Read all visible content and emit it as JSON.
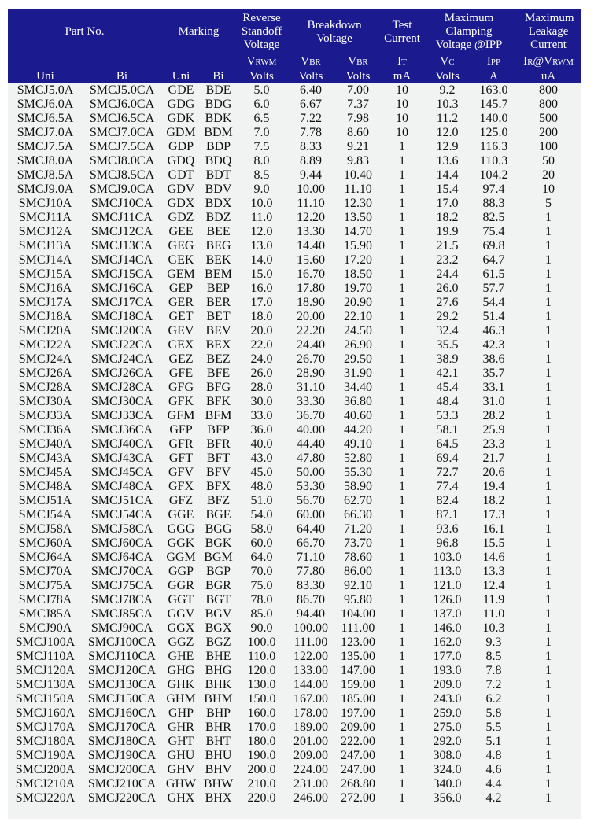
{
  "header": {
    "part_no": "Part No.",
    "marking": "Marking",
    "reverse_standoff": "Reverse Standoff Voltage",
    "breakdown": "Breakdown Voltage",
    "test_current": "Test Current",
    "max_clamping": "Maximum Clamping Voltage @IPP",
    "max_leakage": "Maximum Leakage Current",
    "symbols": {
      "vrwm": {
        "main": "V",
        "sub": "RWM"
      },
      "vbr_min": {
        "main": "V",
        "sub": "BR"
      },
      "vbr_max": {
        "main": "V",
        "sub": "BR"
      },
      "it": {
        "main": "I",
        "sub": "T"
      },
      "vc": {
        "main": "V",
        "sub": "C"
      },
      "ipp": {
        "main": "I",
        "sub": "PP"
      },
      "ir": {
        "main": "I",
        "sub": "R",
        "mid": "@V",
        "sub2": "RWM"
      }
    },
    "units": [
      "Uni",
      "Bi",
      "Uni",
      "Bi",
      "Volts",
      "Volts",
      "Volts",
      "mA",
      "Volts",
      "A",
      "uA"
    ]
  },
  "colors": {
    "header_bg": "#1b1b8f",
    "header_text": "#ffffff",
    "body_bg": "#f1f2f2"
  },
  "rows": [
    [
      "SMCJ5.0A",
      "SMCJ5.0CA",
      "GDE",
      "BDE",
      "5.0",
      "6.40",
      "7.00",
      "10",
      "9.2",
      "163.0",
      "800"
    ],
    [
      "SMCJ6.0A",
      "SMCJ6.0CA",
      "GDG",
      "BDG",
      "6.0",
      "6.67",
      "7.37",
      "10",
      "10.3",
      "145.7",
      "800"
    ],
    [
      "SMCJ6.5A",
      "SMCJ6.5CA",
      "GDK",
      "BDK",
      "6.5",
      "7.22",
      "7.98",
      "10",
      "11.2",
      "140.0",
      "500"
    ],
    [
      "SMCJ7.0A",
      "SMCJ7.0CA",
      "GDM",
      "BDM",
      "7.0",
      "7.78",
      "8.60",
      "10",
      "12.0",
      "125.0",
      "200"
    ],
    [
      "SMCJ7.5A",
      "SMCJ7.5CA",
      "GDP",
      "BDP",
      "7.5",
      "8.33",
      "9.21",
      "1",
      "12.9",
      "116.3",
      "100"
    ],
    [
      "SMCJ8.0A",
      "SMCJ8.0CA",
      "GDQ",
      "BDQ",
      "8.0",
      "8.89",
      "9.83",
      "1",
      "13.6",
      "110.3",
      "50"
    ],
    [
      "SMCJ8.5A",
      "SMCJ8.5CA",
      "GDT",
      "BDT",
      "8.5",
      "9.44",
      "10.40",
      "1",
      "14.4",
      "104.2",
      "20"
    ],
    [
      "SMCJ9.0A",
      "SMCJ9.0CA",
      "GDV",
      "BDV",
      "9.0",
      "10.00",
      "11.10",
      "1",
      "15.4",
      "97.4",
      "10"
    ],
    [
      "SMCJ10A",
      "SMCJ10CA",
      "GDX",
      "BDX",
      "10.0",
      "11.10",
      "12.30",
      "1",
      "17.0",
      "88.3",
      "5"
    ],
    [
      "SMCJ11A",
      "SMCJ11CA",
      "GDZ",
      "BDZ",
      "11.0",
      "12.20",
      "13.50",
      "1",
      "18.2",
      "82.5",
      "1"
    ],
    [
      "SMCJ12A",
      "SMCJ12CA",
      "GEE",
      "BEE",
      "12.0",
      "13.30",
      "14.70",
      "1",
      "19.9",
      "75.4",
      "1"
    ],
    [
      "SMCJ13A",
      "SMCJ13CA",
      "GEG",
      "BEG",
      "13.0",
      "14.40",
      "15.90",
      "1",
      "21.5",
      "69.8",
      "1"
    ],
    [
      "SMCJ14A",
      "SMCJ14CA",
      "GEK",
      "BEK",
      "14.0",
      "15.60",
      "17.20",
      "1",
      "23.2",
      "64.7",
      "1"
    ],
    [
      "SMCJ15A",
      "SMCJ15CA",
      "GEM",
      "BEM",
      "15.0",
      "16.70",
      "18.50",
      "1",
      "24.4",
      "61.5",
      "1"
    ],
    [
      "SMCJ16A",
      "SMCJ16CA",
      "GEP",
      "BEP",
      "16.0",
      "17.80",
      "19.70",
      "1",
      "26.0",
      "57.7",
      "1"
    ],
    [
      "SMCJ17A",
      "SMCJ17CA",
      "GER",
      "BER",
      "17.0",
      "18.90",
      "20.90",
      "1",
      "27.6",
      "54.4",
      "1"
    ],
    [
      "SMCJ18A",
      "SMCJ18CA",
      "GET",
      "BET",
      "18.0",
      "20.00",
      "22.10",
      "1",
      "29.2",
      "51.4",
      "1"
    ],
    [
      "SMCJ20A",
      "SMCJ20CA",
      "GEV",
      "BEV",
      "20.0",
      "22.20",
      "24.50",
      "1",
      "32.4",
      "46.3",
      "1"
    ],
    [
      "SMCJ22A",
      "SMCJ22CA",
      "GEX",
      "BEX",
      "22.0",
      "24.40",
      "26.90",
      "1",
      "35.5",
      "42.3",
      "1"
    ],
    [
      "SMCJ24A",
      "SMCJ24CA",
      "GEZ",
      "BEZ",
      "24.0",
      "26.70",
      "29.50",
      "1",
      "38.9",
      "38.6",
      "1"
    ],
    [
      "SMCJ26A",
      "SMCJ26CA",
      "GFE",
      "BFE",
      "26.0",
      "28.90",
      "31.90",
      "1",
      "42.1",
      "35.7",
      "1"
    ],
    [
      "SMCJ28A",
      "SMCJ28CA",
      "GFG",
      "BFG",
      "28.0",
      "31.10",
      "34.40",
      "1",
      "45.4",
      "33.1",
      "1"
    ],
    [
      "SMCJ30A",
      "SMCJ30CA",
      "GFK",
      "BFK",
      "30.0",
      "33.30",
      "36.80",
      "1",
      "48.4",
      "31.0",
      "1"
    ],
    [
      "SMCJ33A",
      "SMCJ33CA",
      "GFM",
      "BFM",
      "33.0",
      "36.70",
      "40.60",
      "1",
      "53.3",
      "28.2",
      "1"
    ],
    [
      "SMCJ36A",
      "SMCJ36CA",
      "GFP",
      "BFP",
      "36.0",
      "40.00",
      "44.20",
      "1",
      "58.1",
      "25.9",
      "1"
    ],
    [
      "SMCJ40A",
      "SMCJ40CA",
      "GFR",
      "BFR",
      "40.0",
      "44.40",
      "49.10",
      "1",
      "64.5",
      "23.3",
      "1"
    ],
    [
      "SMCJ43A",
      "SMCJ43CA",
      "GFT",
      "BFT",
      "43.0",
      "47.80",
      "52.80",
      "1",
      "69.4",
      "21.7",
      "1"
    ],
    [
      "SMCJ45A",
      "SMCJ45CA",
      "GFV",
      "BFV",
      "45.0",
      "50.00",
      "55.30",
      "1",
      "72.7",
      "20.6",
      "1"
    ],
    [
      "SMCJ48A",
      "SMCJ48CA",
      "GFX",
      "BFX",
      "48.0",
      "53.30",
      "58.90",
      "1",
      "77.4",
      "19.4",
      "1"
    ],
    [
      "SMCJ51A",
      "SMCJ51CA",
      "GFZ",
      "BFZ",
      "51.0",
      "56.70",
      "62.70",
      "1",
      "82.4",
      "18.2",
      "1"
    ],
    [
      "SMCJ54A",
      "SMCJ54CA",
      "GGE",
      "BGE",
      "54.0",
      "60.00",
      "66.30",
      "1",
      "87.1",
      "17.3",
      "1"
    ],
    [
      "SMCJ58A",
      "SMCJ58CA",
      "GGG",
      "BGG",
      "58.0",
      "64.40",
      "71.20",
      "1",
      "93.6",
      "16.1",
      "1"
    ],
    [
      "SMCJ60A",
      "SMCJ60CA",
      "GGK",
      "BGK",
      "60.0",
      "66.70",
      "73.70",
      "1",
      "96.8",
      "15.5",
      "1"
    ],
    [
      "SMCJ64A",
      "SMCJ64CA",
      "GGM",
      "BGM",
      "64.0",
      "71.10",
      "78.60",
      "1",
      "103.0",
      "14.6",
      "1"
    ],
    [
      "SMCJ70A",
      "SMCJ70CA",
      "GGP",
      "BGP",
      "70.0",
      "77.80",
      "86.00",
      "1",
      "113.0",
      "13.3",
      "1"
    ],
    [
      "SMCJ75A",
      "SMCJ75CA",
      "GGR",
      "BGR",
      "75.0",
      "83.30",
      "92.10",
      "1",
      "121.0",
      "12.4",
      "1"
    ],
    [
      "SMCJ78A",
      "SMCJ78CA",
      "GGT",
      "BGT",
      "78.0",
      "86.70",
      "95.80",
      "1",
      "126.0",
      "11.9",
      "1"
    ],
    [
      "SMCJ85A",
      "SMCJ85CA",
      "GGV",
      "BGV",
      "85.0",
      "94.40",
      "104.00",
      "1",
      "137.0",
      "11.0",
      "1"
    ],
    [
      "SMCJ90A",
      "SMCJ90CA",
      "GGX",
      "BGX",
      "90.0",
      "100.00",
      "111.00",
      "1",
      "146.0",
      "10.3",
      "1"
    ],
    [
      "SMCJ100A",
      "SMCJ100CA",
      "GGZ",
      "BGZ",
      "100.0",
      "111.00",
      "123.00",
      "1",
      "162.0",
      "9.3",
      "1"
    ],
    [
      "SMCJ110A",
      "SMCJ110CA",
      "GHE",
      "BHE",
      "110.0",
      "122.00",
      "135.00",
      "1",
      "177.0",
      "8.5",
      "1"
    ],
    [
      "SMCJ120A",
      "SMCJ120CA",
      "GHG",
      "BHG",
      "120.0",
      "133.00",
      "147.00",
      "1",
      "193.0",
      "7.8",
      "1"
    ],
    [
      "SMCJ130A",
      "SMCJ130CA",
      "GHK",
      "BHK",
      "130.0",
      "144.00",
      "159.00",
      "1",
      "209.0",
      "7.2",
      "1"
    ],
    [
      "SMCJ150A",
      "SMCJ150CA",
      "GHM",
      "BHM",
      "150.0",
      "167.00",
      "185.00",
      "1",
      "243.0",
      "6.2",
      "1"
    ],
    [
      "SMCJ160A",
      "SMCJ160CA",
      "GHP",
      "BHP",
      "160.0",
      "178.00",
      "197.00",
      "1",
      "259.0",
      "5.8",
      "1"
    ],
    [
      "SMCJ170A",
      "SMCJ170CA",
      "GHR",
      "BHR",
      "170.0",
      "189.00",
      "209.00",
      "1",
      "275.0",
      "5.5",
      "1"
    ],
    [
      "SMCJ180A",
      "SMCJ180CA",
      "GHT",
      "BHT",
      "180.0",
      "201.00",
      "222.00",
      "1",
      "292.0",
      "5.1",
      "1"
    ],
    [
      "SMCJ190A",
      "SMCJ190CA",
      "GHU",
      "BHU",
      "190.0",
      "209.00",
      "247.00",
      "1",
      "308.0",
      "4.8",
      "1"
    ],
    [
      "SMCJ200A",
      "SMCJ200CA",
      "GHV",
      "BHV",
      "200.0",
      "224.00",
      "247.00",
      "1",
      "324.0",
      "4.6",
      "1"
    ],
    [
      "SMCJ210A",
      "SMCJ210CA",
      "GHW",
      "BHW",
      "210.0",
      "231.00",
      "268.80",
      "1",
      "340.0",
      "4.4",
      "1"
    ],
    [
      "SMCJ220A",
      "SMCJ220CA",
      "GHX",
      "BHX",
      "220.0",
      "246.00",
      "272.00",
      "1",
      "356.0",
      "4.2",
      "1"
    ]
  ]
}
